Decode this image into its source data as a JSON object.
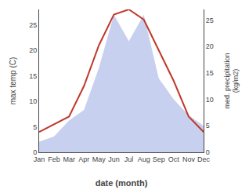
{
  "chart_data": {
    "type": "line",
    "categories": [
      "Jan",
      "Feb",
      "Mar",
      "Apr",
      "May",
      "Jun",
      "Jul",
      "Aug",
      "Sep",
      "Oct",
      "Nov",
      "Dec"
    ],
    "xlabel": "date (month)",
    "ylabel": "max temp (C)",
    "y2label": "med. precipitation\n(kg/m2)",
    "series": [
      {
        "type": "area",
        "axis": "y2",
        "color": "#c8d0f0",
        "values": [
          2,
          3,
          6,
          8,
          16,
          26,
          21,
          26,
          14,
          10,
          7,
          5
        ]
      },
      {
        "type": "line",
        "color": "#c0392b",
        "values": [
          4,
          5.5,
          7,
          13,
          21,
          27,
          28,
          26,
          20,
          14,
          7,
          4
        ]
      }
    ],
    "ylim": [
      0,
      28
    ],
    "yticks": [
      0,
      5,
      10,
      15,
      20,
      25
    ],
    "y2lim": [
      0,
      27
    ],
    "y2ticks": [
      0,
      5,
      10,
      15,
      20,
      25
    ],
    "grid": false
  }
}
